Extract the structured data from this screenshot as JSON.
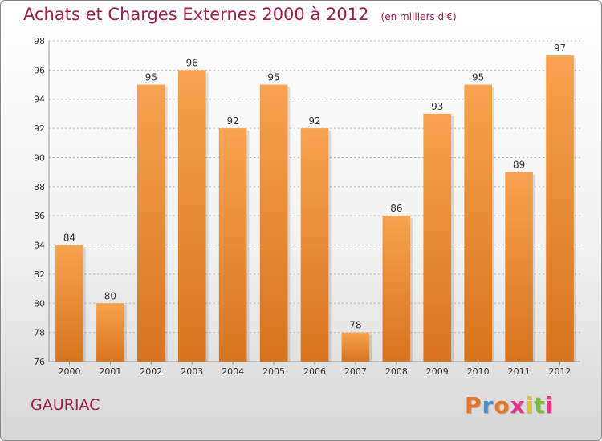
{
  "header": {
    "title": "Achats et Charges Externes 2000 à 2012",
    "subtitle": "(en milliers d'€)"
  },
  "footer": {
    "commune": "GAURIAC",
    "brand": "Proxiti",
    "brand_letter_colors": [
      "#e8762a",
      "#4a8fd0",
      "#e8762a",
      "#e8348a",
      "#e8c020",
      "#7dbb3a",
      "#e8348a"
    ]
  },
  "chart_data": {
    "type": "bar",
    "categories": [
      "2000",
      "2001",
      "2002",
      "2003",
      "2004",
      "2005",
      "2006",
      "2007",
      "2008",
      "2009",
      "2010",
      "2011",
      "2012"
    ],
    "values": [
      84,
      80,
      95,
      96,
      92,
      95,
      92,
      78,
      86,
      93,
      95,
      89,
      97
    ],
    "ylim": [
      76,
      98
    ],
    "yticks": [
      76,
      78,
      80,
      82,
      84,
      86,
      88,
      90,
      92,
      94,
      96,
      98
    ],
    "grid": true,
    "bar_color_light": "#f7a34f",
    "bar_color_dark": "#d8741e",
    "grid_color": "#bbbbbb",
    "label_color": "#333333"
  }
}
